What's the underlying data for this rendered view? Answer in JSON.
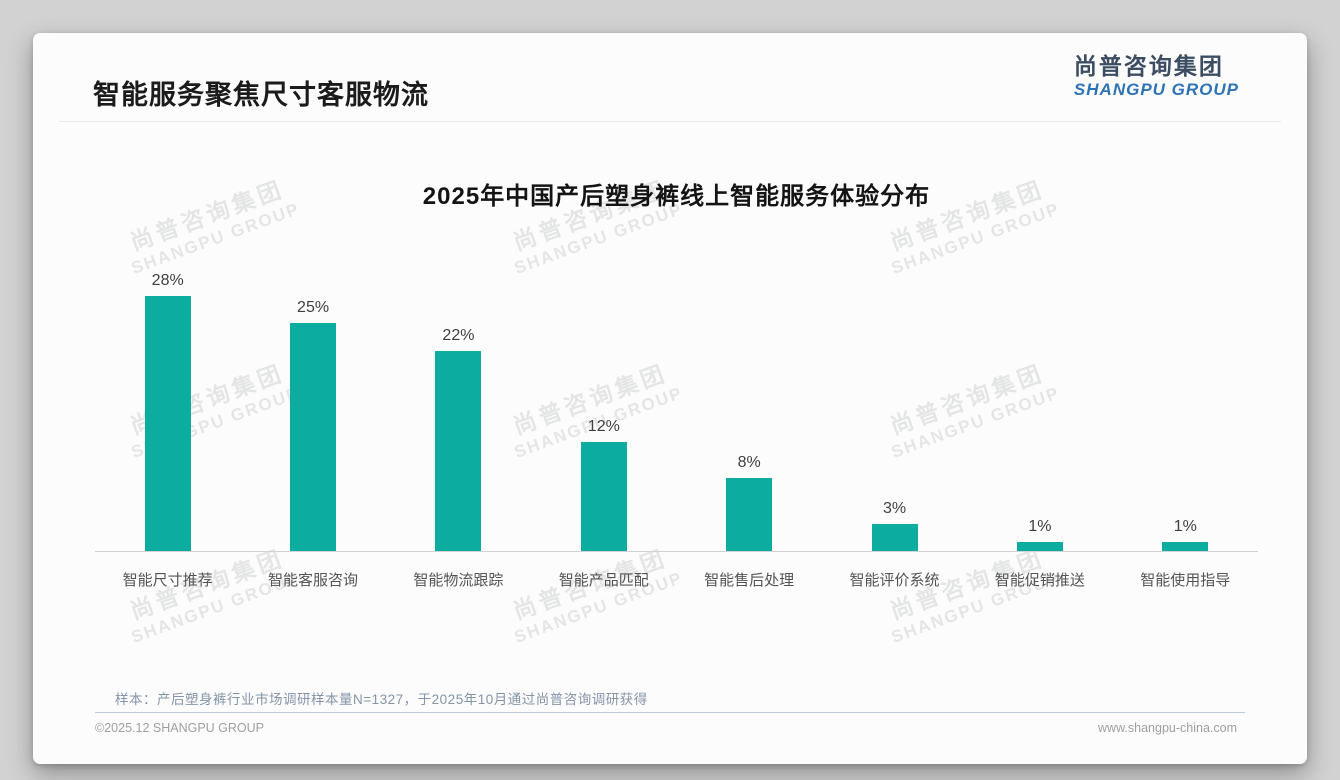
{
  "page": {
    "title": "智能服务聚焦尺寸客服物流",
    "logo": {
      "cn": "尚普咨询集团",
      "en": "SHANGPU GROUP"
    },
    "watermark": {
      "cn": "尚普咨询集团",
      "en": "SHANGPU GROUP"
    },
    "footnote": "样本：产后塑身裤行业市场调研样本量N=1327，于2025年10月通过尚普咨询调研获得",
    "footer": {
      "left": "©2025.12 SHANGPU GROUP",
      "right": "www.shangpu-china.com"
    }
  },
  "colors": {
    "bar": "#0caca1",
    "logo_cn": "#3c4d63",
    "logo_en": "#2e73b6",
    "footnote": "#8494a8"
  },
  "chart_data": {
    "type": "bar",
    "title": "2025年中国产后塑身裤线上智能服务体验分布",
    "categories": [
      "智能尺寸推荐",
      "智能客服咨询",
      "智能物流跟踪",
      "智能产品匹配",
      "智能售后处理",
      "智能评价系统",
      "智能促销推送",
      "智能使用指导"
    ],
    "values": [
      28,
      25,
      22,
      12,
      8,
      3,
      1,
      1
    ],
    "value_label_format": "{v}%",
    "unit": "%",
    "ylim": [
      0,
      30
    ],
    "grid": false,
    "legend": "none",
    "value_labels_position": "above bars",
    "bar_color": "#0caca1"
  }
}
